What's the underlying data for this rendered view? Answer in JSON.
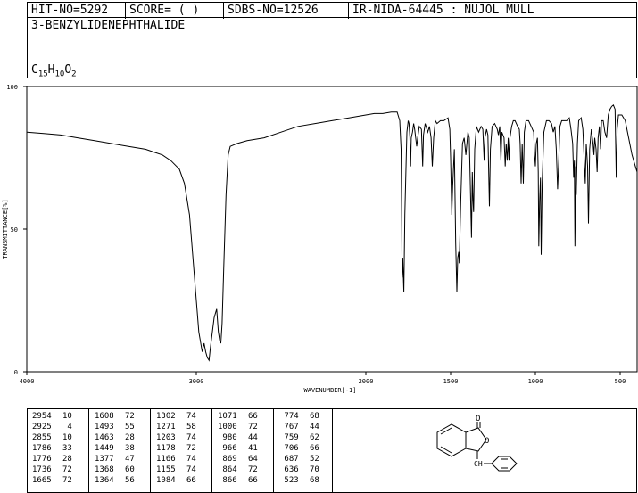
{
  "header": {
    "hit_no": "HIT-NO=5292",
    "score": "SCORE=  (   )",
    "sdbs_no": "SDBS-NO=12526",
    "ir_no": "IR-NIDA-64445 : NUJOL MULL"
  },
  "compound": {
    "name": "3-BENZYLIDENEPHTHALIDE",
    "formula": {
      "c": "C",
      "cn": "15",
      "h": "H",
      "hn": "10",
      "o": "O",
      "on": "2"
    }
  },
  "chart_data": {
    "type": "line",
    "xlabel": "WAVENUMBER[-1]",
    "ylabel": "TRANSMITTANCE[%]",
    "xlim": [
      4000,
      400
    ],
    "ylim": [
      0,
      100
    ],
    "x_ticks": [
      4000,
      3000,
      2000,
      1500,
      1000,
      500
    ],
    "y_ticks": [
      0,
      50,
      100
    ],
    "x_tick_labels": [
      "4000",
      "3000",
      "2000",
      "1500",
      "1000",
      "500"
    ],
    "y_tick_labels": [
      "0",
      "50",
      "100"
    ],
    "series": [
      {
        "points": [
          [
            4000,
            84
          ],
          [
            3900,
            83.5
          ],
          [
            3800,
            83
          ],
          [
            3700,
            82
          ],
          [
            3600,
            81
          ],
          [
            3500,
            80
          ],
          [
            3400,
            79
          ],
          [
            3300,
            78
          ],
          [
            3250,
            77
          ],
          [
            3200,
            76
          ],
          [
            3150,
            74
          ],
          [
            3100,
            71
          ],
          [
            3070,
            66
          ],
          [
            3040,
            55
          ],
          [
            3020,
            40
          ],
          [
            3000,
            25
          ],
          [
            2985,
            14
          ],
          [
            2965,
            7
          ],
          [
            2954,
            10
          ],
          [
            2945,
            7
          ],
          [
            2935,
            5
          ],
          [
            2925,
            4
          ],
          [
            2918,
            8
          ],
          [
            2905,
            14
          ],
          [
            2895,
            19
          ],
          [
            2880,
            22
          ],
          [
            2870,
            14
          ],
          [
            2862,
            11
          ],
          [
            2855,
            10
          ],
          [
            2848,
            17
          ],
          [
            2838,
            37
          ],
          [
            2825,
            62
          ],
          [
            2812,
            76
          ],
          [
            2800,
            79
          ],
          [
            2760,
            80
          ],
          [
            2700,
            81
          ],
          [
            2600,
            82
          ],
          [
            2500,
            84
          ],
          [
            2400,
            86
          ],
          [
            2300,
            87
          ],
          [
            2200,
            88
          ],
          [
            2100,
            89
          ],
          [
            2000,
            90
          ],
          [
            1950,
            90.5
          ],
          [
            1900,
            90.5
          ],
          [
            1850,
            91
          ],
          [
            1815,
            91
          ],
          [
            1800,
            88
          ],
          [
            1792,
            78
          ],
          [
            1786,
            33
          ],
          [
            1782,
            40
          ],
          [
            1776,
            28
          ],
          [
            1770,
            55
          ],
          [
            1758,
            84
          ],
          [
            1750,
            88
          ],
          [
            1745,
            87
          ],
          [
            1740,
            82
          ],
          [
            1736,
            72
          ],
          [
            1732,
            82
          ],
          [
            1725,
            84
          ],
          [
            1718,
            87
          ],
          [
            1712,
            85
          ],
          [
            1700,
            79
          ],
          [
            1694,
            82
          ],
          [
            1685,
            86
          ],
          [
            1672,
            85
          ],
          [
            1665,
            72
          ],
          [
            1660,
            83
          ],
          [
            1650,
            87
          ],
          [
            1635,
            84
          ],
          [
            1625,
            86
          ],
          [
            1615,
            82
          ],
          [
            1608,
            72
          ],
          [
            1600,
            82
          ],
          [
            1590,
            88
          ],
          [
            1580,
            87
          ],
          [
            1560,
            88
          ],
          [
            1540,
            88
          ],
          [
            1515,
            89
          ],
          [
            1505,
            85
          ],
          [
            1500,
            75
          ],
          [
            1493,
            55
          ],
          [
            1488,
            65
          ],
          [
            1478,
            78
          ],
          [
            1470,
            45
          ],
          [
            1463,
            28
          ],
          [
            1458,
            40
          ],
          [
            1452,
            42
          ],
          [
            1449,
            38
          ],
          [
            1440,
            60
          ],
          [
            1430,
            80
          ],
          [
            1420,
            82
          ],
          [
            1410,
            76
          ],
          [
            1398,
            84
          ],
          [
            1390,
            82
          ],
          [
            1377,
            47
          ],
          [
            1372,
            70
          ],
          [
            1368,
            60
          ],
          [
            1364,
            56
          ],
          [
            1358,
            78
          ],
          [
            1348,
            86
          ],
          [
            1335,
            84
          ],
          [
            1320,
            86
          ],
          [
            1310,
            85
          ],
          [
            1302,
            74
          ],
          [
            1298,
            82
          ],
          [
            1288,
            85
          ],
          [
            1280,
            83
          ],
          [
            1271,
            58
          ],
          [
            1265,
            78
          ],
          [
            1255,
            86
          ],
          [
            1240,
            87
          ],
          [
            1225,
            85
          ],
          [
            1218,
            83
          ],
          [
            1210,
            86
          ],
          [
            1203,
            74
          ],
          [
            1198,
            84
          ],
          [
            1185,
            82
          ],
          [
            1178,
            72
          ],
          [
            1172,
            80
          ],
          [
            1166,
            74
          ],
          [
            1160,
            82
          ],
          [
            1155,
            74
          ],
          [
            1150,
            82
          ],
          [
            1140,
            86
          ],
          [
            1130,
            88
          ],
          [
            1120,
            88
          ],
          [
            1105,
            86
          ],
          [
            1095,
            85
          ],
          [
            1090,
            80
          ],
          [
            1084,
            66
          ],
          [
            1078,
            80
          ],
          [
            1071,
            66
          ],
          [
            1065,
            84
          ],
          [
            1055,
            88
          ],
          [
            1040,
            88
          ],
          [
            1025,
            86
          ],
          [
            1010,
            84
          ],
          [
            1005,
            76
          ],
          [
            1000,
            72
          ],
          [
            995,
            80
          ],
          [
            988,
            82
          ],
          [
            983,
            70
          ],
          [
            980,
            44
          ],
          [
            975,
            60
          ],
          [
            970,
            68
          ],
          [
            966,
            41
          ],
          [
            960,
            66
          ],
          [
            950,
            84
          ],
          [
            935,
            88
          ],
          [
            920,
            88
          ],
          [
            905,
            87
          ],
          [
            895,
            84
          ],
          [
            885,
            86
          ],
          [
            877,
            78
          ],
          [
            869,
            64
          ],
          [
            862,
            74
          ],
          [
            855,
            86
          ],
          [
            845,
            88
          ],
          [
            830,
            88
          ],
          [
            815,
            88
          ],
          [
            800,
            89
          ],
          [
            790,
            85
          ],
          [
            780,
            80
          ],
          [
            774,
            68
          ],
          [
            770,
            74
          ],
          [
            767,
            44
          ],
          [
            762,
            72
          ],
          [
            759,
            62
          ],
          [
            752,
            80
          ],
          [
            745,
            88
          ],
          [
            730,
            89
          ],
          [
            720,
            85
          ],
          [
            706,
            66
          ],
          [
            700,
            80
          ],
          [
            692,
            72
          ],
          [
            687,
            52
          ],
          [
            680,
            78
          ],
          [
            670,
            85
          ],
          [
            660,
            80
          ],
          [
            655,
            76
          ],
          [
            650,
            82
          ],
          [
            642,
            78
          ],
          [
            636,
            70
          ],
          [
            630,
            82
          ],
          [
            622,
            86
          ],
          [
            615,
            78
          ],
          [
            610,
            88
          ],
          [
            600,
            88
          ],
          [
            590,
            84
          ],
          [
            580,
            82
          ],
          [
            570,
            90
          ],
          [
            560,
            92
          ],
          [
            550,
            93
          ],
          [
            540,
            93.5
          ],
          [
            530,
            92
          ],
          [
            523,
            68
          ],
          [
            518,
            85
          ],
          [
            510,
            90
          ],
          [
            490,
            90
          ],
          [
            470,
            88
          ],
          [
            450,
            82
          ],
          [
            430,
            76
          ],
          [
            415,
            73
          ],
          [
            405,
            71
          ],
          [
            400,
            70
          ]
        ]
      }
    ]
  },
  "peak_table": {
    "columns": [
      [
        [
          "2954",
          "10"
        ],
        [
          "2925",
          "4"
        ],
        [
          "2855",
          "10"
        ],
        [
          "1786",
          "33"
        ],
        [
          "1776",
          "28"
        ],
        [
          "1736",
          "72"
        ],
        [
          "1665",
          "72"
        ]
      ],
      [
        [
          "1608",
          "72"
        ],
        [
          "1493",
          "55"
        ],
        [
          "1463",
          "28"
        ],
        [
          "1449",
          "38"
        ],
        [
          "1377",
          "47"
        ],
        [
          "1368",
          "60"
        ],
        [
          "1364",
          "56"
        ]
      ],
      [
        [
          "1302",
          "74"
        ],
        [
          "1271",
          "58"
        ],
        [
          "1203",
          "74"
        ],
        [
          "1178",
          "72"
        ],
        [
          "1166",
          "74"
        ],
        [
          "1155",
          "74"
        ],
        [
          "1084",
          "66"
        ]
      ],
      [
        [
          "1071",
          "66"
        ],
        [
          "1000",
          "72"
        ],
        [
          "980",
          "44"
        ],
        [
          "966",
          "41"
        ],
        [
          "869",
          "64"
        ],
        [
          "864",
          "72"
        ],
        [
          "866",
          "66"
        ]
      ],
      [
        [
          "774",
          "68"
        ],
        [
          "767",
          "44"
        ],
        [
          "759",
          "62"
        ],
        [
          "706",
          "66"
        ],
        [
          "687",
          "52"
        ],
        [
          "636",
          "70"
        ],
        [
          "523",
          "68"
        ]
      ]
    ]
  },
  "structure": {
    "carbonyl_atom": "O",
    "ring_atom": "O",
    "chain_atom": "CH"
  }
}
